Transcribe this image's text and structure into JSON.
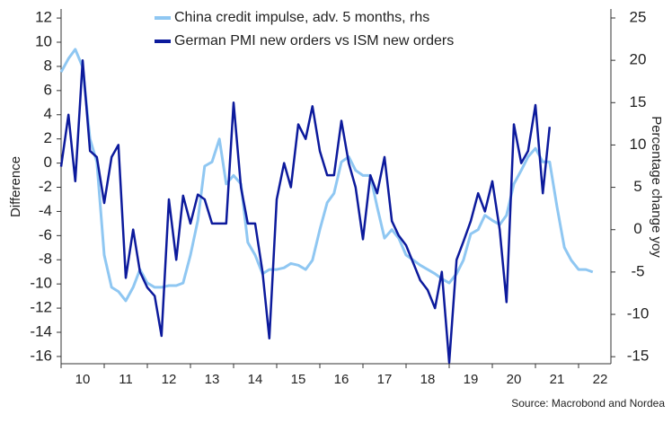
{
  "chart_data": {
    "type": "line",
    "ylabel": "Difference",
    "y2label": "Percentage change yoy",
    "source": "Source: Macrobond and Nordea",
    "legend": "upper center",
    "xlim": [
      10,
      22.75
    ],
    "xticks": [
      {
        "value": 10,
        "label": "10"
      },
      {
        "value": 11,
        "label": "11"
      },
      {
        "value": 12,
        "label": "12"
      },
      {
        "value": 13,
        "label": "13"
      },
      {
        "value": 14,
        "label": "14"
      },
      {
        "value": 15,
        "label": "15"
      },
      {
        "value": 16,
        "label": "16"
      },
      {
        "value": 17,
        "label": "17"
      },
      {
        "value": 18,
        "label": "18"
      },
      {
        "value": 19,
        "label": "19"
      },
      {
        "value": 20,
        "label": "20"
      },
      {
        "value": 21,
        "label": "21"
      },
      {
        "value": 22,
        "label": "22"
      }
    ],
    "ylim": [
      -16.6,
      12.75
    ],
    "yticks": [
      12,
      10,
      8,
      6,
      4,
      2,
      0,
      -2,
      -4,
      -6,
      -8,
      -10,
      -12,
      -14,
      -16
    ],
    "y2lim": [
      -15.83,
      26.06
    ],
    "y2ticks": [
      25,
      20,
      15,
      10,
      5,
      0,
      -5,
      -10,
      -15
    ],
    "x": [
      10,
      10.17,
      10.33,
      10.5,
      10.67,
      10.83,
      11,
      11.17,
      11.33,
      11.5,
      11.67,
      11.83,
      12,
      12.17,
      12.33,
      12.5,
      12.67,
      12.83,
      13,
      13.17,
      13.33,
      13.5,
      13.67,
      13.83,
      14,
      14.17,
      14.33,
      14.5,
      14.67,
      14.83,
      15,
      15.17,
      15.33,
      15.5,
      15.67,
      15.83,
      16,
      16.17,
      16.33,
      16.5,
      16.67,
      16.83,
      17,
      17.17,
      17.33,
      17.5,
      17.67,
      17.83,
      18,
      18.17,
      18.33,
      18.5,
      18.67,
      18.83,
      19,
      19.17,
      19.33,
      19.5,
      19.67,
      19.83,
      20,
      20.17,
      20.33,
      20.5,
      20.67,
      20.83,
      21,
      21.17,
      21.33,
      21.5,
      21.67,
      21.83,
      22,
      22.17,
      22.33
    ],
    "series": [
      {
        "name": "China credit impulse, adv. 5 months, rhs",
        "color": "#8fc7f2",
        "axis": "y2",
        "values": [
          18.6,
          20.2,
          21.3,
          19.2,
          10.7,
          8,
          -3,
          -6.8,
          -7.3,
          -8.4,
          -6.8,
          -4.7,
          -6.3,
          -6.8,
          -6.8,
          -6.6,
          -6.6,
          -6.3,
          -3,
          1.1,
          7.5,
          8,
          10.7,
          5.4,
          6.4,
          5.4,
          -1.5,
          -3,
          -5.2,
          -4.7,
          -4.7,
          -4.5,
          -4,
          -4.2,
          -4.7,
          -3.6,
          0,
          3.2,
          4.3,
          8,
          8.6,
          7,
          6.4,
          6.4,
          2.7,
          -1,
          0,
          -1,
          -3,
          -3.6,
          -4.2,
          -4.7,
          -5.2,
          -5.8,
          -6.3,
          -5.2,
          -3.6,
          -0.5,
          0,
          1.7,
          1.1,
          0.6,
          1.7,
          5.4,
          7,
          8.6,
          9.6,
          8,
          8,
          2.7,
          -2.1,
          -3.6,
          -4.7,
          -4.7,
          -5
        ]
      },
      {
        "name": "German PMI new orders vs ISM new orders",
        "color": "#0c1a9c",
        "values": [
          -0.3,
          4,
          -1.5,
          8.5,
          1,
          0.5,
          -3.3,
          0.5,
          1.5,
          -9.5,
          -5.5,
          -9,
          -10.3,
          -11,
          -14.3,
          -3,
          -8,
          -2.7,
          -5,
          -2.6,
          -3,
          -5,
          -5,
          -5,
          5,
          -2,
          -5,
          -5,
          -9,
          -14.5,
          -3,
          0,
          -2,
          3.2,
          2,
          4.7,
          1,
          -1,
          -1,
          3.5,
          0,
          -2,
          -6.3,
          -1,
          -2.5,
          0.5,
          -4.8,
          -6,
          -6.8,
          -8.3,
          -9.7,
          -10.5,
          -12,
          -9,
          -16.5,
          -8,
          -6.5,
          -4.8,
          -2.5,
          -4,
          -1.5,
          -5.5,
          -11.5,
          3.2,
          0,
          1,
          4.8,
          -2.5,
          3,
          null,
          null,
          null,
          null,
          null,
          null
        ]
      }
    ]
  }
}
